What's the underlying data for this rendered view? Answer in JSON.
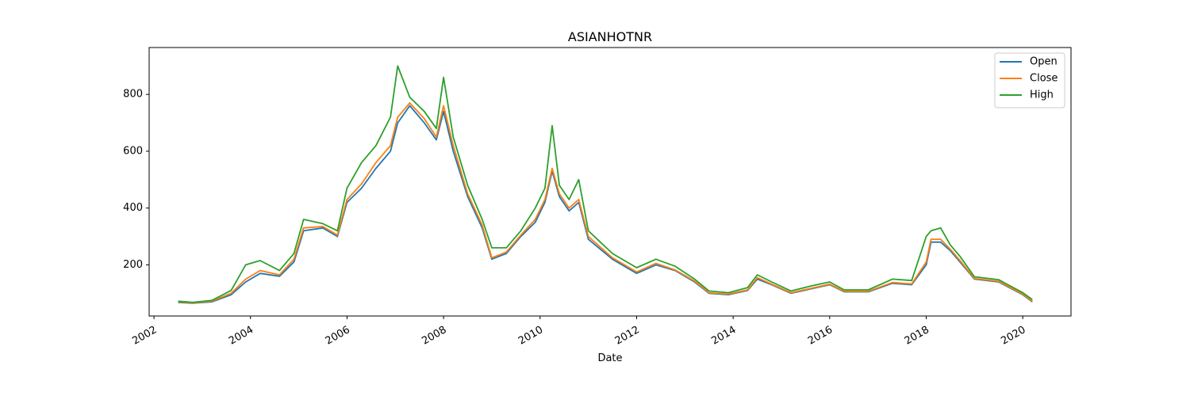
{
  "chart_data": {
    "type": "line",
    "title": "ASIANHOTNR",
    "xlabel": "Date",
    "ylabel": "",
    "xlim": [
      2001.9,
      2021.0
    ],
    "ylim": [
      20,
      965
    ],
    "x_ticks": [
      2002,
      2004,
      2006,
      2008,
      2010,
      2012,
      2014,
      2016,
      2018,
      2020
    ],
    "x_tick_labels": [
      "2002",
      "2004",
      "2006",
      "2008",
      "2010",
      "2012",
      "2014",
      "2016",
      "2018",
      "2020"
    ],
    "y_ticks": [
      200,
      400,
      600,
      800
    ],
    "y_tick_labels": [
      "200",
      "400",
      "600",
      "800"
    ],
    "grid": false,
    "legend_position": "top-right",
    "x": [
      2002.5,
      2002.8,
      2003.2,
      2003.6,
      2003.9,
      2004.2,
      2004.6,
      2004.9,
      2005.1,
      2005.5,
      2005.8,
      2006.0,
      2006.3,
      2006.6,
      2006.9,
      2007.05,
      2007.3,
      2007.6,
      2007.85,
      2008.0,
      2008.2,
      2008.5,
      2008.8,
      2009.0,
      2009.3,
      2009.6,
      2009.9,
      2010.1,
      2010.25,
      2010.4,
      2010.6,
      2010.8,
      2011.0,
      2011.5,
      2012.0,
      2012.4,
      2012.8,
      2013.2,
      2013.5,
      2013.9,
      2014.3,
      2014.5,
      2014.8,
      2015.2,
      2015.6,
      2016.0,
      2016.3,
      2016.8,
      2017.3,
      2017.7,
      2018.0,
      2018.1,
      2018.3,
      2018.5,
      2018.7,
      2019.0,
      2019.5,
      2020.0,
      2020.2
    ],
    "series": [
      {
        "name": "Open",
        "color": "#1f77b4",
        "values": [
          68,
          65,
          70,
          95,
          140,
          170,
          160,
          210,
          320,
          330,
          300,
          420,
          470,
          540,
          600,
          700,
          760,
          700,
          640,
          740,
          600,
          440,
          330,
          220,
          240,
          300,
          350,
          420,
          530,
          440,
          390,
          420,
          290,
          220,
          170,
          200,
          180,
          140,
          100,
          95,
          110,
          150,
          130,
          100,
          115,
          130,
          105,
          105,
          135,
          130,
          200,
          280,
          280,
          250,
          210,
          150,
          140,
          95,
          70
        ]
      },
      {
        "name": "Close",
        "color": "#ff7f0e",
        "values": [
          70,
          66,
          72,
          100,
          150,
          180,
          165,
          220,
          330,
          335,
          305,
          430,
          485,
          560,
          620,
          720,
          770,
          715,
          650,
          760,
          620,
          450,
          340,
          225,
          245,
          305,
          360,
          430,
          540,
          450,
          400,
          430,
          300,
          225,
          175,
          205,
          182,
          143,
          102,
          97,
          112,
          155,
          132,
          102,
          117,
          132,
          107,
          107,
          138,
          133,
          210,
          290,
          290,
          255,
          215,
          152,
          142,
          97,
          72
        ]
      },
      {
        "name": "High",
        "color": "#2ca02c",
        "values": [
          72,
          68,
          75,
          110,
          200,
          215,
          180,
          240,
          360,
          345,
          320,
          470,
          560,
          620,
          720,
          900,
          790,
          740,
          680,
          860,
          650,
          480,
          360,
          260,
          260,
          320,
          400,
          470,
          690,
          480,
          430,
          500,
          320,
          240,
          190,
          220,
          195,
          150,
          108,
          102,
          120,
          165,
          140,
          108,
          125,
          140,
          112,
          112,
          150,
          145,
          300,
          320,
          330,
          270,
          230,
          158,
          148,
          102,
          78
        ]
      }
    ]
  }
}
